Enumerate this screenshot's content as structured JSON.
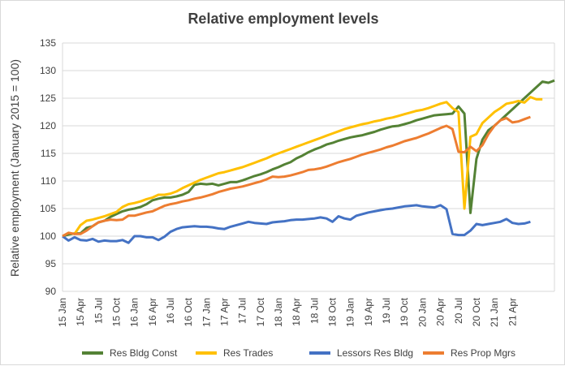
{
  "chart_data": {
    "type": "line",
    "title": "Relative employment levels",
    "xlabel": "",
    "ylabel": "Relative employment (January 2015 = 100)",
    "ylim": [
      90,
      135
    ],
    "yticks": [
      90,
      95,
      100,
      105,
      110,
      115,
      120,
      125,
      130,
      135
    ],
    "grid": true,
    "legend_position": "bottom",
    "x_tick_labels": [
      "15 Jan",
      "15 Apr",
      "15 Jul",
      "15 Oct",
      "16 Jan",
      "16 Apr",
      "16 Jul",
      "16 Oct",
      "17 Jan",
      "17 Apr",
      "17 Jul",
      "17 Oct",
      "18 Jan",
      "18 Apr",
      "18 Jul",
      "18 Oct",
      "19 Jan",
      "19 Apr",
      "19 Jul",
      "19 Oct",
      "20 Jan",
      "20 Apr",
      "20 Jul",
      "20 Oct",
      "21 Jan",
      "21 Apr"
    ],
    "x_range": [
      "2015-01",
      "2021-06"
    ],
    "series": [
      {
        "name": "Res Bldg Const",
        "color": "#548235",
        "values": [
          100,
          100.3,
          100.5,
          100.5,
          101.5,
          101.8,
          102.5,
          102.8,
          103.5,
          104,
          104.5,
          104.8,
          105,
          105.3,
          105.8,
          106.5,
          106.8,
          107,
          107,
          107.2,
          107.5,
          108,
          109.3,
          109.5,
          109.4,
          109.5,
          109.2,
          109.5,
          109.8,
          109.8,
          110.1,
          110.5,
          110.9,
          111.2,
          111.6,
          112.1,
          112.5,
          113,
          113.4,
          114.1,
          114.6,
          115.2,
          115.7,
          116.1,
          116.6,
          116.9,
          117.3,
          117.6,
          117.9,
          118.1,
          118.3,
          118.6,
          118.9,
          119.3,
          119.6,
          119.9,
          120,
          120.3,
          120.6,
          121,
          121.3,
          121.6,
          121.9,
          122,
          122.1,
          122.2,
          123.5,
          122.2,
          104.2,
          114,
          117.5,
          119.2,
          120,
          121,
          122,
          123,
          124,
          125,
          126,
          127,
          128,
          127.8,
          128.2
        ]
      },
      {
        "name": "Res Trades",
        "color": "#ffc000",
        "values": [
          100,
          100.6,
          100.4,
          102,
          102.8,
          103,
          103.3,
          103.6,
          104,
          104.4,
          105.3,
          105.8,
          106,
          106.3,
          106.7,
          107,
          107.5,
          107.5,
          107.7,
          108.1,
          108.7,
          109.2,
          109.7,
          110.2,
          110.6,
          111,
          111.4,
          111.6,
          111.9,
          112.2,
          112.5,
          112.9,
          113.3,
          113.7,
          114.1,
          114.6,
          115,
          115.4,
          115.8,
          116.2,
          116.6,
          117,
          117.4,
          117.8,
          118.2,
          118.6,
          119,
          119.4,
          119.7,
          120,
          120.3,
          120.5,
          120.8,
          121,
          121.3,
          121.5,
          121.8,
          122.1,
          122.4,
          122.7,
          122.9,
          123.2,
          123.6,
          124,
          124.3,
          123.2,
          122.5,
          105,
          118,
          118.5,
          120.5,
          121.5,
          122.5,
          123.2,
          124,
          124.2,
          124.5,
          124.2,
          125.2,
          124.8,
          124.8
        ]
      },
      {
        "name": "Lessors Res Bldg",
        "color": "#4472c4",
        "values": [
          100,
          99.2,
          99.8,
          99.3,
          99.2,
          99.5,
          99,
          99.2,
          99.1,
          99.1,
          99.3,
          98.8,
          100,
          100,
          99.8,
          99.8,
          99.3,
          99.9,
          100.8,
          101.3,
          101.6,
          101.7,
          101.8,
          101.7,
          101.7,
          101.6,
          101.4,
          101.3,
          101.7,
          102,
          102.3,
          102.6,
          102.4,
          102.3,
          102.2,
          102.5,
          102.6,
          102.7,
          102.9,
          103,
          103,
          103.1,
          103.2,
          103.4,
          103.2,
          102.6,
          103.6,
          103.2,
          103,
          103.7,
          104,
          104.3,
          104.5,
          104.7,
          104.9,
          105,
          105.2,
          105.4,
          105.5,
          105.6,
          105.4,
          105.3,
          105.2,
          105.6,
          104.9,
          100.4,
          100.2,
          100.2,
          101,
          102.2,
          102,
          102.2,
          102.4,
          102.6,
          103.1,
          102.4,
          102.2,
          102.3,
          102.6
        ]
      },
      {
        "name": "Res Prop Mgrs",
        "color": "#ed7d31",
        "values": [
          100,
          100.6,
          100.4,
          100.4,
          101,
          101.8,
          102.5,
          102.8,
          103,
          102.9,
          103,
          103.7,
          103.7,
          104,
          104.3,
          104.5,
          105,
          105.5,
          105.8,
          106,
          106.3,
          106.5,
          106.8,
          107,
          107.3,
          107.6,
          108,
          108.3,
          108.6,
          108.8,
          109,
          109.3,
          109.6,
          109.9,
          110.3,
          110.8,
          110.7,
          110.8,
          111,
          111.3,
          111.6,
          112,
          112.1,
          112.3,
          112.6,
          113,
          113.4,
          113.7,
          114,
          114.4,
          114.8,
          115.1,
          115.4,
          115.7,
          116.1,
          116.4,
          116.8,
          117.2,
          117.5,
          117.8,
          118.2,
          118.6,
          119.1,
          119.6,
          120,
          119.4,
          115.3,
          115.2,
          116.2,
          115.4,
          116.5,
          118.5,
          120,
          121,
          121.4,
          120.6,
          120.8,
          121.2,
          121.6
        ]
      }
    ]
  }
}
